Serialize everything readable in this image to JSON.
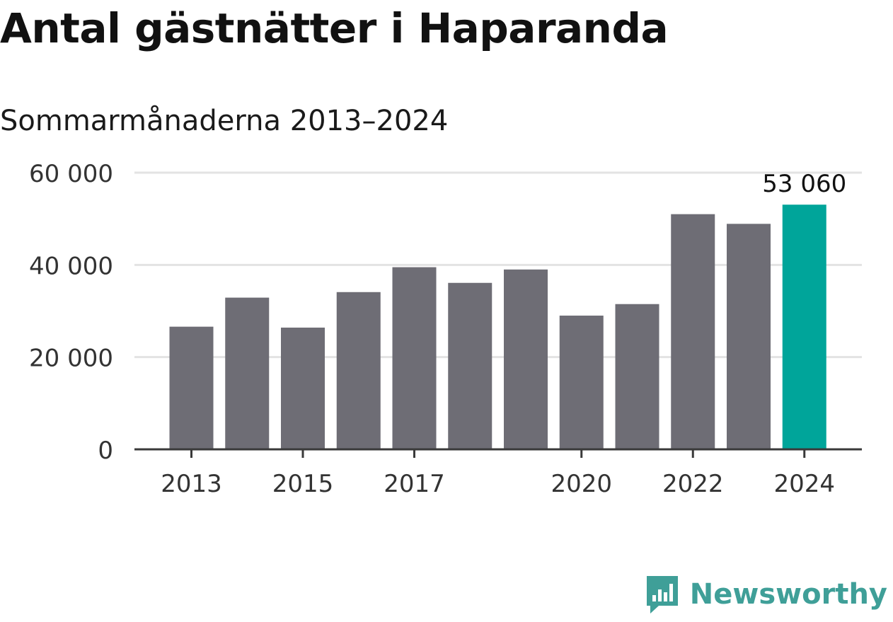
{
  "title": "Antal gästnätter i Haparanda",
  "subtitle": "Sommarmånaderna 2013–2024",
  "brand": {
    "name": "Newsworthy",
    "icon": "bar-chart-speech-bubble-icon",
    "color": "#3f9f98"
  },
  "colors": {
    "bar": "#6e6d75",
    "highlight": "#00a59a",
    "grid": "#e3e3e3",
    "axis": "#3a3a3a"
  },
  "chart_data": {
    "type": "bar",
    "categories": [
      "2013",
      "2014",
      "2015",
      "2016",
      "2017",
      "2018",
      "2019",
      "2020",
      "2021",
      "2022",
      "2023",
      "2024"
    ],
    "values": [
      26600,
      32900,
      26400,
      34100,
      39500,
      36100,
      39000,
      29000,
      31500,
      51000,
      48900,
      53060
    ],
    "x_tick_labels": [
      "2013",
      "2015",
      "2017",
      "2020",
      "2022",
      "2024"
    ],
    "y_ticks": [
      0,
      20000,
      40000,
      60000
    ],
    "y_tick_labels": [
      "0",
      "20 000",
      "40 000",
      "60 000"
    ],
    "ylim": [
      0,
      60000
    ],
    "highlight_index": 11,
    "data_labels": [
      {
        "index": 11,
        "text": "53 060"
      }
    ],
    "xlabel": "",
    "ylabel": "",
    "grid": true
  }
}
